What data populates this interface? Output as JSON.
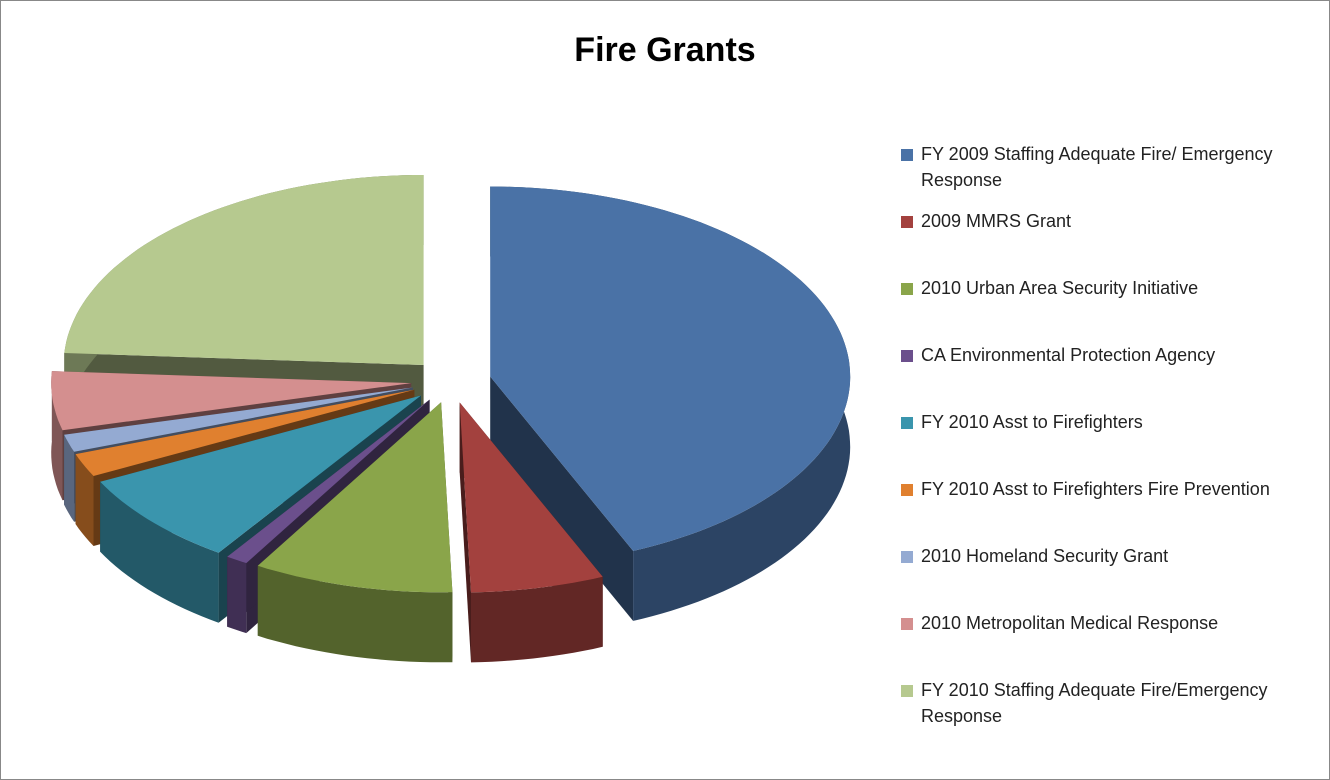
{
  "chart_data": {
    "type": "pie",
    "title": "Fire Grants",
    "categories": [
      "FY 2009 Staffing Adequate Fire/ Emergency Response",
      "2009 MMRS Grant",
      "2010 Urban Area Security Initiative",
      "CA Environmental Protection Agency",
      "FY 2010 Asst to Firefighters",
      "FY 2010 Asst to Firefighters Fire Prevention",
      "2010 Homeland Security Grant",
      "2010 Metropolitan Medical Response",
      "FY 2010 Staffing Adequate Fire/Emergency Response"
    ],
    "values": [
      43.5,
      6,
      9,
      1,
      8,
      2,
      1.5,
      5,
      24
    ],
    "colors": [
      "#4a72a6",
      "#a3413e",
      "#8aa54a",
      "#6b4f8c",
      "#3a95ad",
      "#e0802f",
      "#94aad2",
      "#d48f8f",
      "#b6c98f"
    ],
    "legend": "right"
  }
}
